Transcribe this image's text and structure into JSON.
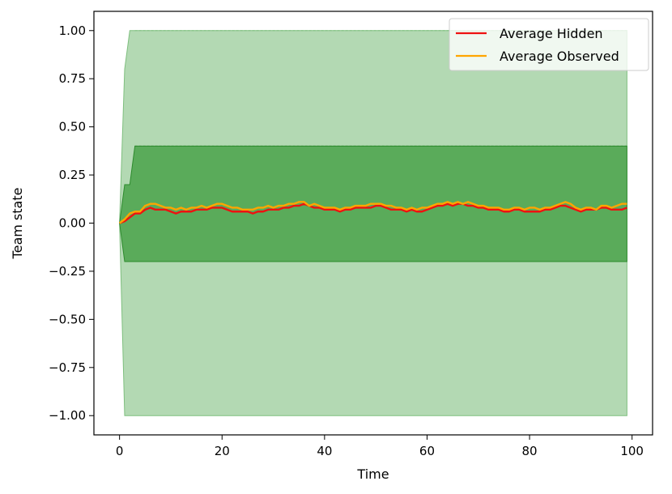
{
  "chart_data": {
    "type": "area",
    "title": "",
    "xlabel": "Time",
    "ylabel": "Team state",
    "xlim": [
      -5,
      104
    ],
    "ylim": [
      -1.1,
      1.1
    ],
    "x_ticks": [
      0,
      20,
      40,
      60,
      80,
      100
    ],
    "y_ticks": [
      -1.0,
      -0.75,
      -0.5,
      -0.25,
      0.0,
      0.25,
      0.5,
      0.75,
      1.0
    ],
    "x_tick_labels": [
      "0",
      "20",
      "40",
      "60",
      "80",
      "100"
    ],
    "y_tick_labels": [
      "−1.00",
      "−0.75",
      "−0.50",
      "−0.25",
      "0.00",
      "0.25",
      "0.50",
      "0.75",
      "1.00"
    ],
    "grid": false,
    "legend_position": "top-right",
    "bands": [
      {
        "x": [
          0,
          1,
          2,
          3,
          99
        ],
        "upper": [
          0.0,
          0.8,
          1.0,
          1.0,
          1.0
        ],
        "lower": [
          0.0,
          -1.0,
          -1.0,
          -1.0,
          -1.0
        ],
        "color": "#b3d9b3"
      },
      {
        "x": [
          0,
          1,
          2,
          3,
          99
        ],
        "upper": [
          0.0,
          0.2,
          0.2,
          0.4,
          0.4
        ],
        "lower": [
          0.0,
          -0.2,
          -0.2,
          -0.2,
          -0.2
        ],
        "color": "#5aab5a"
      }
    ],
    "series": [
      {
        "name": "Average Hidden",
        "color": "#ee1111",
        "x": [
          0,
          1,
          2,
          3,
          4,
          5,
          6,
          7,
          8,
          9,
          10,
          11,
          12,
          13,
          14,
          15,
          16,
          17,
          18,
          19,
          20,
          21,
          22,
          23,
          24,
          25,
          26,
          27,
          28,
          29,
          30,
          31,
          32,
          33,
          34,
          35,
          36,
          37,
          38,
          39,
          40,
          41,
          42,
          43,
          44,
          45,
          46,
          47,
          48,
          49,
          50,
          51,
          52,
          53,
          54,
          55,
          56,
          57,
          58,
          59,
          60,
          61,
          62,
          63,
          64,
          65,
          66,
          67,
          68,
          69,
          70,
          71,
          72,
          73,
          74,
          75,
          76,
          77,
          78,
          79,
          80,
          81,
          82,
          83,
          84,
          85,
          86,
          87,
          88,
          89,
          90,
          91,
          92,
          93,
          94,
          95,
          96,
          97,
          98,
          99
        ],
        "y": [
          0.0,
          0.01,
          0.03,
          0.05,
          0.05,
          0.07,
          0.08,
          0.07,
          0.07,
          0.07,
          0.06,
          0.05,
          0.06,
          0.06,
          0.06,
          0.07,
          0.07,
          0.07,
          0.08,
          0.08,
          0.08,
          0.07,
          0.06,
          0.06,
          0.06,
          0.06,
          0.05,
          0.06,
          0.06,
          0.07,
          0.07,
          0.07,
          0.08,
          0.08,
          0.09,
          0.09,
          0.1,
          0.09,
          0.08,
          0.08,
          0.07,
          0.07,
          0.07,
          0.06,
          0.07,
          0.07,
          0.08,
          0.08,
          0.08,
          0.08,
          0.09,
          0.09,
          0.08,
          0.07,
          0.07,
          0.07,
          0.06,
          0.07,
          0.06,
          0.06,
          0.07,
          0.08,
          0.09,
          0.09,
          0.1,
          0.09,
          0.1,
          0.1,
          0.09,
          0.09,
          0.08,
          0.08,
          0.07,
          0.07,
          0.07,
          0.06,
          0.06,
          0.07,
          0.07,
          0.06,
          0.06,
          0.06,
          0.06,
          0.07,
          0.07,
          0.08,
          0.09,
          0.09,
          0.08,
          0.07,
          0.06,
          0.07,
          0.07,
          0.07,
          0.08,
          0.08,
          0.07,
          0.07,
          0.07,
          0.08
        ]
      },
      {
        "name": "Average Observed",
        "color": "#ffa500",
        "x": [
          0,
          1,
          2,
          3,
          4,
          5,
          6,
          7,
          8,
          9,
          10,
          11,
          12,
          13,
          14,
          15,
          16,
          17,
          18,
          19,
          20,
          21,
          22,
          23,
          24,
          25,
          26,
          27,
          28,
          29,
          30,
          31,
          32,
          33,
          34,
          35,
          36,
          37,
          38,
          39,
          40,
          41,
          42,
          43,
          44,
          45,
          46,
          47,
          48,
          49,
          50,
          51,
          52,
          53,
          54,
          55,
          56,
          57,
          58,
          59,
          60,
          61,
          62,
          63,
          64,
          65,
          66,
          67,
          68,
          69,
          70,
          71,
          72,
          73,
          74,
          75,
          76,
          77,
          78,
          79,
          80,
          81,
          82,
          83,
          84,
          85,
          86,
          87,
          88,
          89,
          90,
          91,
          92,
          93,
          94,
          95,
          96,
          97,
          98,
          99
        ],
        "y": [
          0.0,
          0.02,
          0.05,
          0.06,
          0.06,
          0.09,
          0.1,
          0.1,
          0.09,
          0.08,
          0.08,
          0.07,
          0.08,
          0.07,
          0.08,
          0.08,
          0.09,
          0.08,
          0.09,
          0.1,
          0.1,
          0.09,
          0.08,
          0.08,
          0.07,
          0.07,
          0.07,
          0.08,
          0.08,
          0.09,
          0.08,
          0.09,
          0.09,
          0.1,
          0.1,
          0.11,
          0.11,
          0.09,
          0.1,
          0.09,
          0.08,
          0.08,
          0.08,
          0.07,
          0.08,
          0.08,
          0.09,
          0.09,
          0.09,
          0.1,
          0.1,
          0.1,
          0.09,
          0.09,
          0.08,
          0.08,
          0.07,
          0.08,
          0.07,
          0.08,
          0.08,
          0.09,
          0.1,
          0.1,
          0.11,
          0.1,
          0.11,
          0.1,
          0.11,
          0.1,
          0.09,
          0.09,
          0.08,
          0.08,
          0.08,
          0.07,
          0.07,
          0.08,
          0.08,
          0.07,
          0.08,
          0.08,
          0.07,
          0.08,
          0.08,
          0.09,
          0.1,
          0.11,
          0.1,
          0.08,
          0.07,
          0.08,
          0.08,
          0.07,
          0.09,
          0.09,
          0.08,
          0.09,
          0.1,
          0.1
        ]
      }
    ]
  }
}
